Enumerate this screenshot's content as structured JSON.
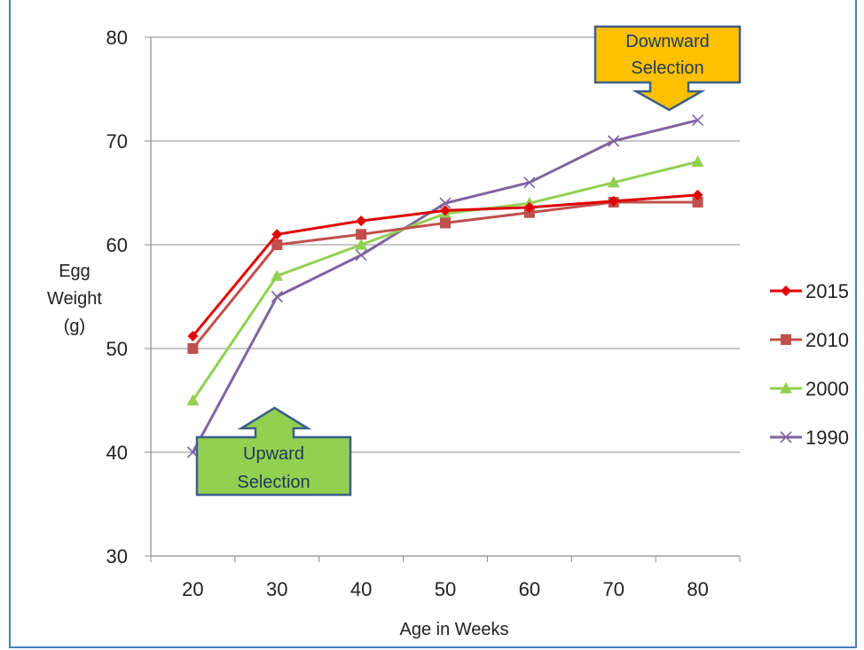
{
  "chart_data": {
    "type": "line",
    "title": "",
    "xlabel": "Age in Weeks",
    "ylabel": [
      "Egg",
      "Weight",
      "(g)"
    ],
    "x": [
      20,
      30,
      40,
      50,
      60,
      70,
      80
    ],
    "xlim": [
      15,
      85
    ],
    "ylim": [
      30,
      80
    ],
    "yticks": [
      30,
      40,
      50,
      60,
      70,
      80
    ],
    "grid": "horizontal",
    "legend_position": "right",
    "series": [
      {
        "name": "2015",
        "color": "#e00000",
        "marker": "diamond",
        "values": [
          51.2,
          61.0,
          62.3,
          63.3,
          63.6,
          64.2,
          64.8
        ]
      },
      {
        "name": "2010",
        "color": "#c0504d",
        "marker": "square",
        "values": [
          50.0,
          60.0,
          61.0,
          62.1,
          63.1,
          64.1,
          64.1
        ]
      },
      {
        "name": "2000",
        "color": "#92d050",
        "marker": "triangle",
        "values": [
          45.0,
          57.0,
          60.0,
          63.0,
          64.0,
          66.0,
          68.0
        ]
      },
      {
        "name": "1990",
        "color": "#8064a2",
        "marker": "x",
        "values": [
          40.0,
          55.0,
          59.0,
          64.0,
          66.0,
          70.0,
          72.0
        ]
      }
    ],
    "annotations": [
      {
        "name": "downward",
        "lines": [
          "Downward",
          "Selection"
        ],
        "fill": "#ffc000",
        "pointer": "down",
        "anchor_x": 77,
        "anchor_y": 73
      },
      {
        "name": "upward",
        "lines": [
          "Upward",
          "Selection"
        ],
        "fill": "#92d050",
        "pointer": "up",
        "anchor_x": 30,
        "anchor_y": 39.5
      }
    ]
  }
}
